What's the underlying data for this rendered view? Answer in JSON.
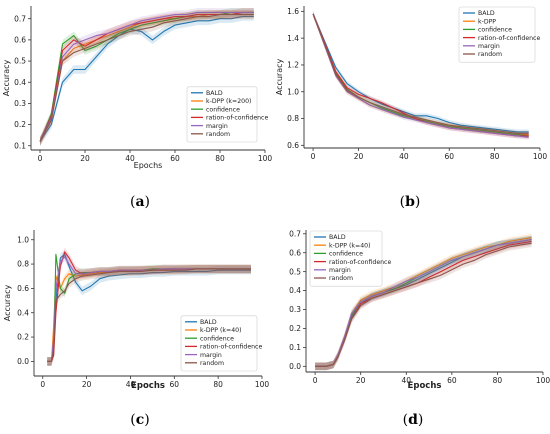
{
  "colors": {
    "BALD": "#1f77b4",
    "k-DPP": "#ff7f0e",
    "confidence": "#2ca02c",
    "ration-of-confidence": "#d62728",
    "margin": "#9467bd",
    "random": "#8c564b"
  },
  "chart_data": [
    {
      "type": "line",
      "caption": {
        "open": "(",
        "letter": "a",
        "close": ")"
      },
      "xlabel": "Epochs",
      "ylabel": "Accuracy",
      "xlim": [
        -4,
        100
      ],
      "ylim": [
        0.08,
        0.76
      ],
      "xticks": [
        0,
        20,
        40,
        60,
        80,
        100
      ],
      "yticks": [
        0.1,
        0.2,
        0.3,
        0.4,
        0.5,
        0.6,
        0.7
      ],
      "legend_position": "bottom-right",
      "x": [
        0,
        5,
        10,
        15,
        20,
        25,
        30,
        35,
        40,
        45,
        50,
        55,
        60,
        65,
        70,
        75,
        80,
        85,
        90,
        95
      ],
      "series": [
        {
          "name": "BALD",
          "values": [
            0.12,
            0.2,
            0.4,
            0.46,
            0.46,
            0.52,
            0.58,
            0.62,
            0.65,
            0.64,
            0.6,
            0.64,
            0.67,
            0.68,
            0.69,
            0.69,
            0.7,
            0.7,
            0.71,
            0.71
          ]
        },
        {
          "name": "k-DPP (k=200)",
          "values": [
            0.12,
            0.22,
            0.5,
            0.56,
            0.58,
            0.6,
            0.62,
            0.64,
            0.66,
            0.68,
            0.69,
            0.7,
            0.7,
            0.71,
            0.71,
            0.72,
            0.72,
            0.72,
            0.72,
            0.72
          ]
        },
        {
          "name": "confidence",
          "values": [
            0.12,
            0.25,
            0.58,
            0.62,
            0.55,
            0.57,
            0.6,
            0.63,
            0.65,
            0.67,
            0.68,
            0.69,
            0.7,
            0.71,
            0.72,
            0.72,
            0.72,
            0.73,
            0.73,
            0.73
          ]
        },
        {
          "name": "ration-of-confidence",
          "values": [
            0.12,
            0.24,
            0.55,
            0.6,
            0.57,
            0.6,
            0.63,
            0.65,
            0.67,
            0.68,
            0.69,
            0.7,
            0.71,
            0.71,
            0.72,
            0.72,
            0.72,
            0.72,
            0.73,
            0.73
          ]
        },
        {
          "name": "margin",
          "values": [
            0.12,
            0.23,
            0.52,
            0.58,
            0.6,
            0.62,
            0.63,
            0.65,
            0.67,
            0.69,
            0.7,
            0.71,
            0.72,
            0.72,
            0.73,
            0.73,
            0.73,
            0.73,
            0.73,
            0.73
          ]
        },
        {
          "name": "random",
          "values": [
            0.12,
            0.22,
            0.5,
            0.54,
            0.56,
            0.58,
            0.6,
            0.62,
            0.64,
            0.65,
            0.66,
            0.68,
            0.69,
            0.7,
            0.71,
            0.71,
            0.72,
            0.72,
            0.72,
            0.72
          ]
        }
      ]
    },
    {
      "type": "line",
      "caption": {
        "open": "(",
        "letter": "b",
        "close": ")"
      },
      "xlabel": "",
      "ylabel": "Accuracy",
      "xlim": [
        -4,
        100
      ],
      "ylim": [
        0.58,
        1.64
      ],
      "xticks": [
        0,
        20,
        40,
        60,
        80,
        100
      ],
      "yticks": [
        0.6,
        0.8,
        1.0,
        1.2,
        1.4,
        1.6
      ],
      "legend_position": "top-right",
      "x": [
        0,
        5,
        10,
        15,
        20,
        25,
        30,
        35,
        40,
        45,
        50,
        55,
        60,
        65,
        70,
        75,
        80,
        85,
        90,
        95
      ],
      "series": [
        {
          "name": "BALD",
          "values": [
            1.58,
            1.38,
            1.18,
            1.06,
            1.0,
            0.95,
            0.91,
            0.88,
            0.85,
            0.82,
            0.82,
            0.8,
            0.77,
            0.75,
            0.74,
            0.73,
            0.72,
            0.71,
            0.7,
            0.7
          ]
        },
        {
          "name": "k-DPP",
          "values": [
            1.58,
            1.35,
            1.12,
            1.0,
            0.95,
            0.9,
            0.87,
            0.84,
            0.82,
            0.8,
            0.78,
            0.76,
            0.75,
            0.73,
            0.72,
            0.71,
            0.7,
            0.69,
            0.68,
            0.68
          ]
        },
        {
          "name": "confidence",
          "values": [
            1.58,
            1.36,
            1.14,
            1.02,
            0.96,
            0.92,
            0.88,
            0.85,
            0.82,
            0.8,
            0.78,
            0.76,
            0.74,
            0.73,
            0.72,
            0.71,
            0.7,
            0.69,
            0.68,
            0.67
          ]
        },
        {
          "name": "ration-of-confidence",
          "values": [
            1.58,
            1.37,
            1.15,
            1.03,
            0.98,
            0.95,
            0.92,
            0.88,
            0.84,
            0.8,
            0.77,
            0.75,
            0.73,
            0.72,
            0.71,
            0.7,
            0.69,
            0.68,
            0.67,
            0.67
          ]
        },
        {
          "name": "margin",
          "values": [
            1.58,
            1.35,
            1.12,
            1.0,
            0.95,
            0.9,
            0.87,
            0.84,
            0.81,
            0.79,
            0.77,
            0.75,
            0.73,
            0.72,
            0.71,
            0.7,
            0.69,
            0.68,
            0.67,
            0.66
          ]
        },
        {
          "name": "random",
          "values": [
            1.58,
            1.36,
            1.13,
            1.01,
            0.96,
            0.92,
            0.89,
            0.86,
            0.83,
            0.81,
            0.79,
            0.77,
            0.75,
            0.74,
            0.73,
            0.72,
            0.71,
            0.7,
            0.69,
            0.69
          ]
        }
      ]
    },
    {
      "type": "line",
      "caption": {
        "open": "(",
        "letter": "c",
        "close": ")"
      },
      "xlabel": "Epochs",
      "ylabel": "Accuracy",
      "xlim": [
        -4,
        100
      ],
      "ylim": [
        -0.12,
        1.08
      ],
      "xticks": [
        0,
        20,
        40,
        60,
        80,
        100
      ],
      "yticks": [
        0.0,
        0.2,
        0.4,
        0.6,
        0.8,
        1.0
      ],
      "legend_position": "bottom-right",
      "x": [
        2,
        4,
        5,
        6,
        8,
        10,
        12,
        15,
        18,
        22,
        26,
        30,
        35,
        40,
        45,
        50,
        55,
        60,
        65,
        70,
        75,
        80,
        85,
        90,
        95
      ],
      "series": [
        {
          "name": "BALD",
          "values": [
            0.0,
            0.0,
            0.15,
            0.5,
            0.85,
            0.88,
            0.78,
            0.65,
            0.58,
            0.62,
            0.68,
            0.7,
            0.71,
            0.72,
            0.72,
            0.73,
            0.73,
            0.74,
            0.74,
            0.74,
            0.74,
            0.75,
            0.75,
            0.75,
            0.75
          ]
        },
        {
          "name": "k-DPP (k=40)",
          "values": [
            0.0,
            0.0,
            0.3,
            0.7,
            0.6,
            0.68,
            0.72,
            0.7,
            0.71,
            0.72,
            0.73,
            0.73,
            0.74,
            0.74,
            0.75,
            0.75,
            0.75,
            0.75,
            0.76,
            0.76,
            0.76,
            0.76,
            0.76,
            0.76,
            0.76
          ]
        },
        {
          "name": "confidence",
          "values": [
            0.0,
            0.0,
            0.1,
            0.88,
            0.6,
            0.56,
            0.68,
            0.72,
            0.73,
            0.73,
            0.74,
            0.74,
            0.75,
            0.75,
            0.75,
            0.76,
            0.76,
            0.76,
            0.76,
            0.76,
            0.76,
            0.76,
            0.76,
            0.76,
            0.76
          ]
        },
        {
          "name": "ration-of-confidence",
          "values": [
            0.0,
            0.0,
            0.05,
            0.4,
            0.78,
            0.9,
            0.85,
            0.75,
            0.72,
            0.73,
            0.74,
            0.74,
            0.75,
            0.75,
            0.75,
            0.75,
            0.76,
            0.76,
            0.76,
            0.76,
            0.76,
            0.76,
            0.76,
            0.76,
            0.76
          ]
        },
        {
          "name": "margin",
          "values": [
            0.0,
            0.0,
            0.2,
            0.6,
            0.82,
            0.86,
            0.8,
            0.72,
            0.72,
            0.73,
            0.74,
            0.74,
            0.75,
            0.75,
            0.75,
            0.75,
            0.76,
            0.76,
            0.76,
            0.76,
            0.76,
            0.76,
            0.76,
            0.76,
            0.76
          ]
        },
        {
          "name": "random",
          "values": [
            0.0,
            0.0,
            0.1,
            0.5,
            0.55,
            0.58,
            0.64,
            0.68,
            0.7,
            0.71,
            0.72,
            0.73,
            0.74,
            0.74,
            0.74,
            0.75,
            0.75,
            0.75,
            0.75,
            0.76,
            0.76,
            0.76,
            0.76,
            0.76,
            0.76
          ]
        }
      ]
    },
    {
      "type": "line",
      "caption": {
        "open": "(",
        "letter": "d",
        "close": ")"
      },
      "xlabel": "Epochs",
      "ylabel": "",
      "xlim": [
        -4,
        100
      ],
      "ylim": [
        -0.03,
        0.72
      ],
      "xticks": [
        0,
        20,
        40,
        60,
        80,
        100
      ],
      "yticks": [
        0.0,
        0.1,
        0.2,
        0.3,
        0.4,
        0.5,
        0.6,
        0.7
      ],
      "legend_position": "top-left",
      "x": [
        0,
        5,
        8,
        10,
        13,
        16,
        20,
        25,
        30,
        35,
        40,
        45,
        50,
        55,
        60,
        65,
        70,
        75,
        80,
        85,
        90,
        95
      ],
      "series": [
        {
          "name": "BALD",
          "values": [
            0.0,
            0.0,
            0.01,
            0.06,
            0.15,
            0.26,
            0.33,
            0.37,
            0.39,
            0.41,
            0.43,
            0.46,
            0.49,
            0.52,
            0.55,
            0.58,
            0.6,
            0.62,
            0.64,
            0.65,
            0.66,
            0.67
          ]
        },
        {
          "name": "k-DPP (k=40)",
          "values": [
            0.0,
            0.0,
            0.01,
            0.06,
            0.16,
            0.28,
            0.35,
            0.38,
            0.4,
            0.42,
            0.45,
            0.48,
            0.51,
            0.54,
            0.57,
            0.59,
            0.61,
            0.63,
            0.64,
            0.66,
            0.67,
            0.68
          ]
        },
        {
          "name": "confidence",
          "values": [
            0.0,
            0.0,
            0.01,
            0.05,
            0.15,
            0.27,
            0.34,
            0.37,
            0.39,
            0.41,
            0.44,
            0.47,
            0.5,
            0.53,
            0.56,
            0.58,
            0.6,
            0.62,
            0.64,
            0.65,
            0.66,
            0.67
          ]
        },
        {
          "name": "ration-of-confidence",
          "values": [
            0.0,
            0.0,
            0.01,
            0.05,
            0.14,
            0.25,
            0.33,
            0.36,
            0.38,
            0.4,
            0.42,
            0.44,
            0.47,
            0.5,
            0.53,
            0.56,
            0.58,
            0.6,
            0.62,
            0.64,
            0.65,
            0.66
          ]
        },
        {
          "name": "margin",
          "values": [
            0.0,
            0.0,
            0.01,
            0.06,
            0.16,
            0.28,
            0.34,
            0.37,
            0.39,
            0.42,
            0.45,
            0.47,
            0.5,
            0.53,
            0.56,
            0.58,
            0.6,
            0.62,
            0.64,
            0.65,
            0.66,
            0.67
          ]
        },
        {
          "name": "random",
          "values": [
            0.0,
            0.0,
            0.01,
            0.05,
            0.14,
            0.25,
            0.32,
            0.36,
            0.38,
            0.4,
            0.42,
            0.44,
            0.46,
            0.48,
            0.51,
            0.54,
            0.56,
            0.59,
            0.61,
            0.63,
            0.64,
            0.65
          ]
        }
      ]
    }
  ]
}
